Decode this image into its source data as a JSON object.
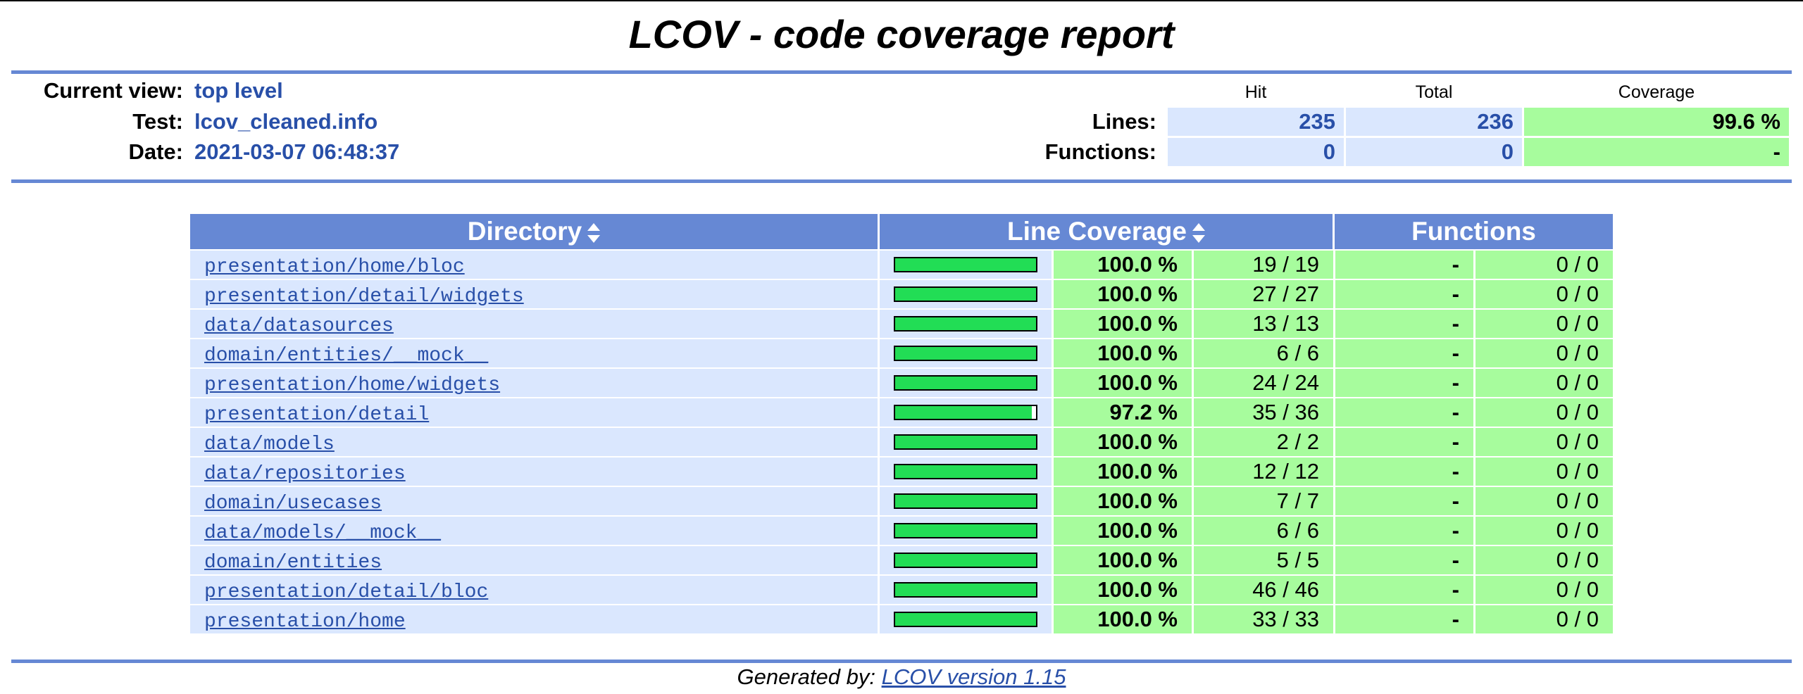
{
  "title": "LCOV - code coverage report",
  "header": {
    "current_view_label": "Current view:",
    "current_view_value": "top level",
    "test_label": "Test:",
    "test_value": "lcov_cleaned.info",
    "date_label": "Date:",
    "date_value": "2021-03-07 06:48:37"
  },
  "summary": {
    "col_hit": "Hit",
    "col_total": "Total",
    "col_coverage": "Coverage",
    "lines_label": "Lines:",
    "lines_hit": "235",
    "lines_total": "236",
    "lines_coverage": "99.6 %",
    "functions_label": "Functions:",
    "functions_hit": "0",
    "functions_total": "0",
    "functions_coverage": "-"
  },
  "table": {
    "col_directory": "Directory",
    "col_line_coverage": "Line Coverage",
    "col_functions": "Functions",
    "rows": [
      {
        "dir": "presentation/home/bloc",
        "fill": 100.0,
        "pct": "100.0 %",
        "lines": "19 / 19",
        "fpct": "-",
        "fn": "0 / 0"
      },
      {
        "dir": "presentation/detail/widgets",
        "fill": 100.0,
        "pct": "100.0 %",
        "lines": "27 / 27",
        "fpct": "-",
        "fn": "0 / 0"
      },
      {
        "dir": "data/datasources",
        "fill": 100.0,
        "pct": "100.0 %",
        "lines": "13 / 13",
        "fpct": "-",
        "fn": "0 / 0"
      },
      {
        "dir": "domain/entities/__mock__",
        "fill": 100.0,
        "pct": "100.0 %",
        "lines": "6 / 6",
        "fpct": "-",
        "fn": "0 / 0"
      },
      {
        "dir": "presentation/home/widgets",
        "fill": 100.0,
        "pct": "100.0 %",
        "lines": "24 / 24",
        "fpct": "-",
        "fn": "0 / 0"
      },
      {
        "dir": "presentation/detail",
        "fill": 97.2,
        "pct": "97.2 %",
        "lines": "35 / 36",
        "fpct": "-",
        "fn": "0 / 0"
      },
      {
        "dir": "data/models",
        "fill": 100.0,
        "pct": "100.0 %",
        "lines": "2 / 2",
        "fpct": "-",
        "fn": "0 / 0"
      },
      {
        "dir": "data/repositories",
        "fill": 100.0,
        "pct": "100.0 %",
        "lines": "12 / 12",
        "fpct": "-",
        "fn": "0 / 0"
      },
      {
        "dir": "domain/usecases",
        "fill": 100.0,
        "pct": "100.0 %",
        "lines": "7 / 7",
        "fpct": "-",
        "fn": "0 / 0"
      },
      {
        "dir": "data/models/__mock__",
        "fill": 100.0,
        "pct": "100.0 %",
        "lines": "6 / 6",
        "fpct": "-",
        "fn": "0 / 0"
      },
      {
        "dir": "domain/entities",
        "fill": 100.0,
        "pct": "100.0 %",
        "lines": "5 / 5",
        "fpct": "-",
        "fn": "0 / 0"
      },
      {
        "dir": "presentation/detail/bloc",
        "fill": 100.0,
        "pct": "100.0 %",
        "lines": "46 / 46",
        "fpct": "-",
        "fn": "0 / 0"
      },
      {
        "dir": "presentation/home",
        "fill": 100.0,
        "pct": "100.0 %",
        "lines": "33 / 33",
        "fpct": "-",
        "fn": "0 / 0"
      }
    ]
  },
  "footer": {
    "prefix": "Generated by:",
    "link": "LCOV version 1.15"
  },
  "colors": {
    "accent": "#6688d4",
    "link": "#284fa8",
    "cell_blue": "#dae7fe",
    "cell_green": "#a7fc9d",
    "bar_green": "#22dd55"
  }
}
